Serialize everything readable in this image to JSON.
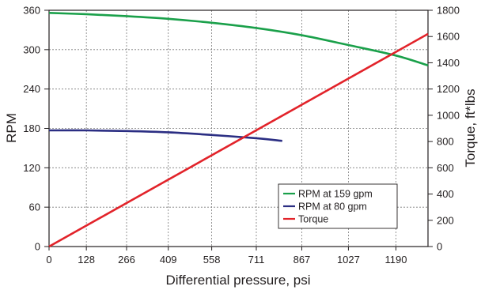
{
  "chart_data": {
    "type": "line",
    "xlabel": "Differential pressure, psi",
    "ylabel_left": "RPM",
    "ylabel_right": "Torque, ft*lbs",
    "x_ticks": [
      0,
      128,
      266,
      409,
      558,
      711,
      867,
      1027,
      1190
    ],
    "y_left_ticks": [
      0,
      60,
      120,
      180,
      240,
      300,
      360
    ],
    "y_right_ticks": [
      0,
      200,
      400,
      600,
      800,
      1000,
      1200,
      1400,
      1600,
      1800
    ],
    "xlim": [
      0,
      1300
    ],
    "ylim_left": [
      0,
      360
    ],
    "ylim_right": [
      0,
      1800
    ],
    "grid": true,
    "legend_position": "bottom-right",
    "series": [
      {
        "name": "RPM at 159 gpm",
        "axis": "left",
        "color": "#1aa04a",
        "x": [
          0,
          128,
          266,
          409,
          558,
          711,
          867,
          1027,
          1190,
          1300
        ],
        "y": [
          356,
          354,
          351,
          347,
          341,
          333,
          322,
          307,
          291,
          276
        ]
      },
      {
        "name": "RPM at 80 gpm",
        "axis": "left",
        "color": "#2b2e83",
        "x": [
          0,
          128,
          266,
          409,
          558,
          711,
          800
        ],
        "y": [
          177,
          177,
          176,
          174,
          170,
          165,
          161
        ]
      },
      {
        "name": "Torque",
        "axis": "right",
        "color": "#e2232a",
        "x": [
          0,
          1300
        ],
        "y": [
          0,
          1620
        ]
      }
    ]
  }
}
